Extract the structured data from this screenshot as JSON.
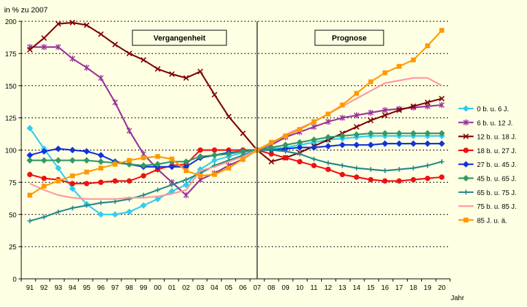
{
  "chart_data": {
    "type": "line",
    "ylabel": "in % zu 2007",
    "xlabel": "Jahr",
    "ylim": [
      0,
      200
    ],
    "yticks": [
      0,
      25,
      50,
      75,
      100,
      125,
      150,
      175,
      200
    ],
    "grid": "horizontal dashed",
    "legend": "right",
    "categories": [
      "91",
      "92",
      "93",
      "94",
      "95",
      "96",
      "97",
      "98",
      "99",
      "00",
      "01",
      "02",
      "03",
      "04",
      "05",
      "06",
      "07",
      "08",
      "09",
      "10",
      "11",
      "12",
      "13",
      "14",
      "15",
      "16",
      "17",
      "18",
      "19",
      "20"
    ],
    "annotations": [
      {
        "text": "Vergangenheit",
        "position": "top-left"
      },
      {
        "text": "Prognose",
        "position": "top-right"
      }
    ],
    "divider_at": "07",
    "series": [
      {
        "name": "0 b. u. 6 J.",
        "color": "#33ccee",
        "marker": "diamond",
        "values": [
          117,
          101,
          86,
          70,
          58,
          50,
          50,
          52,
          57,
          62,
          68,
          73,
          85,
          92,
          95,
          98,
          100,
          101,
          102,
          104,
          106,
          108,
          109,
          110,
          111,
          111,
          111,
          111,
          111,
          111
        ]
      },
      {
        "name": "6 b. u. 12 J.",
        "color": "#993399",
        "marker": "star",
        "values": [
          180,
          180,
          180,
          171,
          164,
          156,
          137,
          115,
          97,
          85,
          75,
          65,
          77,
          82,
          88,
          93,
          100,
          104,
          110,
          114,
          118,
          122,
          125,
          127,
          129,
          131,
          132,
          133,
          134,
          135
        ]
      },
      {
        "name": "12 b. u. 18 J.",
        "color": "#800000",
        "marker": "x",
        "values": [
          178,
          187,
          198,
          199,
          197,
          190,
          182,
          175,
          170,
          163,
          159,
          156,
          161,
          143,
          126,
          113,
          100,
          91,
          94,
          98,
          103,
          108,
          113,
          118,
          123,
          127,
          131,
          134,
          137,
          140
        ]
      },
      {
        "name": "18 b. u. 27 J.",
        "color": "#ee1111",
        "marker": "circle",
        "values": [
          81,
          78,
          77,
          74,
          74,
          75,
          76,
          76,
          80,
          85,
          88,
          89,
          100,
          100,
          100,
          100,
          100,
          97,
          94,
          91,
          88,
          85,
          81,
          79,
          77,
          76,
          76,
          77,
          78,
          79
        ]
      },
      {
        "name": "27 b. u. 45 J.",
        "color": "#1133dd",
        "marker": "diamond",
        "values": [
          96,
          99,
          101,
          100,
          99,
          96,
          91,
          89,
          87,
          87,
          87,
          87,
          94,
          96,
          98,
          99,
          100,
          100,
          101,
          102,
          102,
          103,
          104,
          104,
          104,
          105,
          105,
          105,
          105,
          105
        ]
      },
      {
        "name": "45 b. u. 65 J.",
        "color": "#339966",
        "marker": "diamond",
        "values": [
          92,
          92,
          92,
          92,
          92,
          91,
          90,
          89,
          88,
          89,
          91,
          91,
          95,
          96,
          97,
          99,
          100,
          102,
          104,
          106,
          108,
          110,
          111,
          112,
          113,
          113,
          113,
          113,
          113,
          113
        ]
      },
      {
        "name": "65 b. u. 75 J.",
        "color": "#228888",
        "marker": "plus",
        "values": [
          45,
          48,
          52,
          55,
          57,
          59,
          60,
          62,
          65,
          69,
          73,
          77,
          82,
          88,
          92,
          96,
          100,
          100,
          99,
          97,
          93,
          90,
          88,
          86,
          85,
          84,
          85,
          86,
          88,
          91
        ]
      },
      {
        "name": "75 b. u. 85 J.",
        "color": "#ff9999",
        "marker": "none",
        "values": [
          74,
          69,
          65,
          63,
          62,
          62,
          62,
          63,
          63,
          64,
          66,
          69,
          84,
          87,
          91,
          95,
          100,
          105,
          112,
          117,
          122,
          128,
          134,
          140,
          146,
          152,
          154,
          156,
          156,
          150
        ]
      },
      {
        "name": "85 J. u. ä.",
        "color": "#ff9900",
        "marker": "square",
        "values": [
          65,
          72,
          76,
          80,
          83,
          86,
          89,
          92,
          94,
          95,
          93,
          84,
          80,
          81,
          86,
          93,
          100,
          106,
          111,
          116,
          122,
          128,
          135,
          144,
          153,
          160,
          165,
          170,
          181,
          193
        ]
      }
    ]
  }
}
